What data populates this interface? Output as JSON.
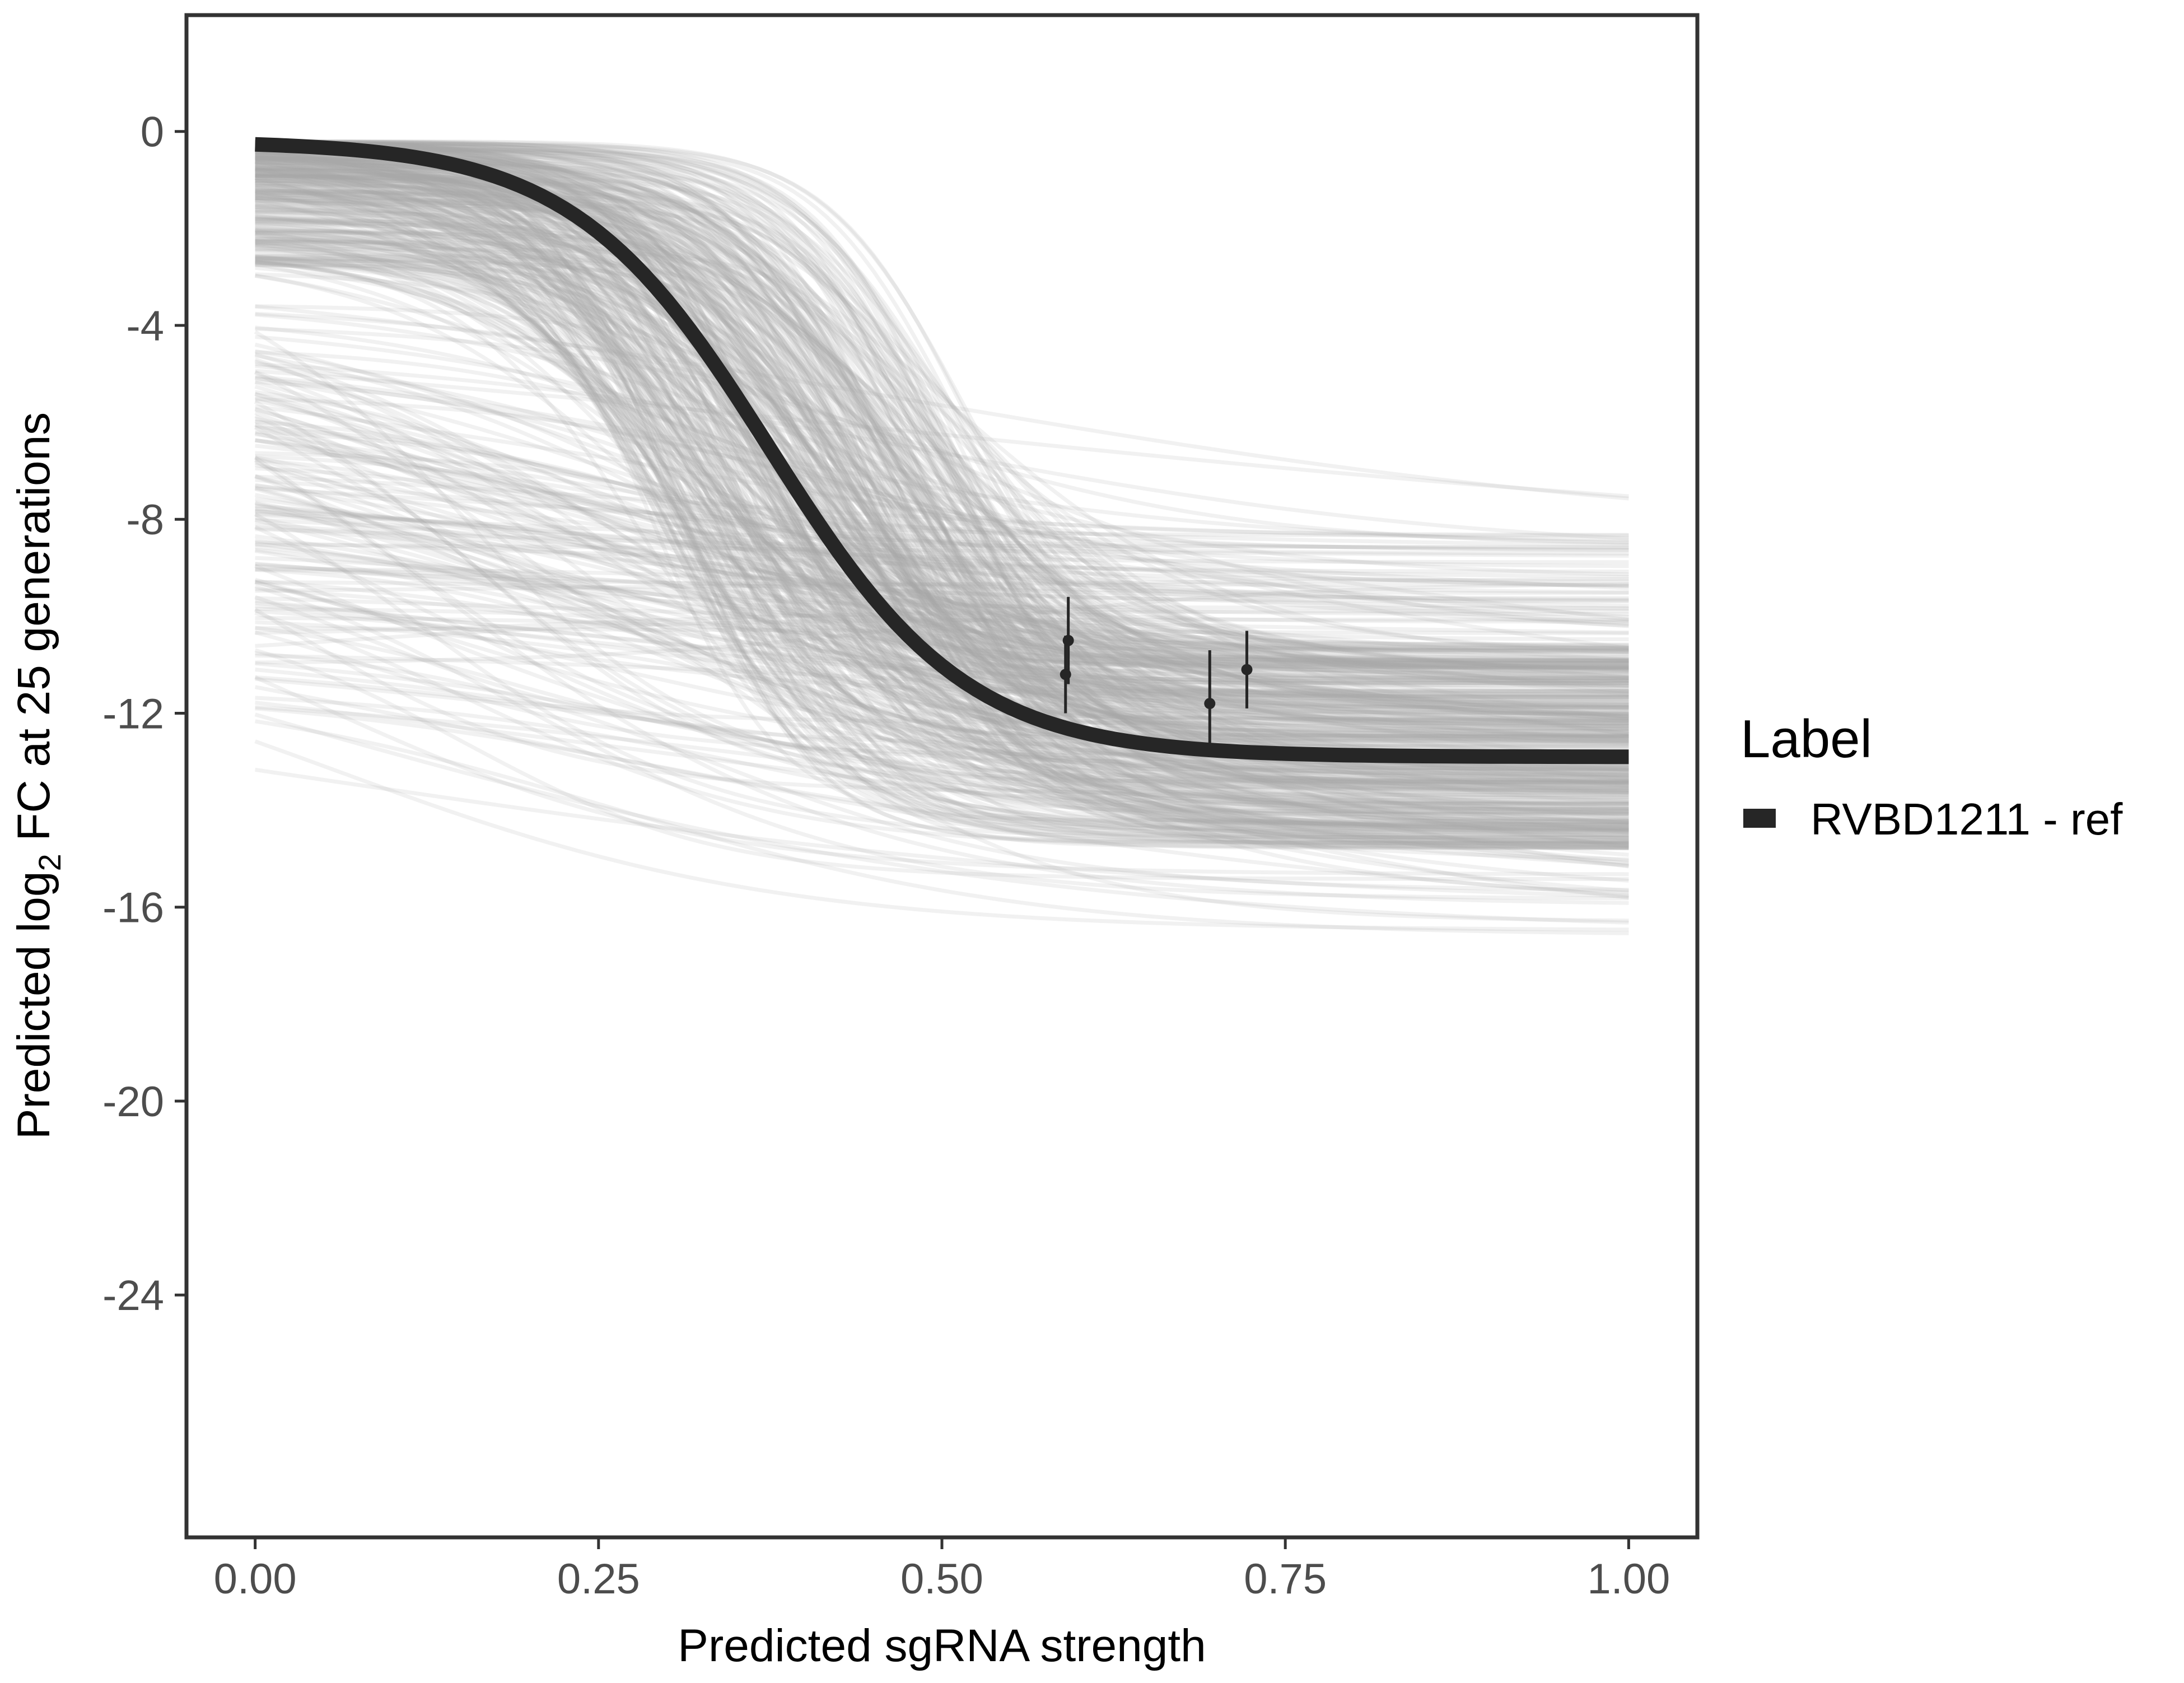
{
  "chart_data": {
    "type": "line",
    "title": "",
    "xlabel": "Predicted sgRNA strength",
    "ylabel": {
      "prefix": "Predicted  log",
      "subscript": "2",
      "suffix": " FC at 25 generations"
    },
    "xlim": [
      -0.05,
      1.05
    ],
    "ylim": [
      -29,
      2.4
    ],
    "x_ticks": [
      0.0,
      0.25,
      0.5,
      0.75,
      1.0
    ],
    "x_tick_labels": [
      "0.00",
      "0.25",
      "0.50",
      "0.75",
      "1.00"
    ],
    "y_ticks": [
      0,
      -4,
      -8,
      -12,
      -16,
      -20,
      -24
    ],
    "y_tick_labels": [
      "0",
      "-4",
      "-8",
      "-12",
      "-16",
      "-20",
      "-24"
    ],
    "grid": false,
    "legend": {
      "title": "Label",
      "position": "right",
      "entries": [
        {
          "label": "RVBD1211 - ref",
          "color": "#262626"
        }
      ]
    },
    "reference_curve": {
      "name": "RVBD1211 - ref",
      "color": "#262626",
      "model": "logistic",
      "upper": -0.2,
      "lower": -12.9,
      "midpoint": 0.375,
      "slope": 14
    },
    "posterior_draws": {
      "count": 500,
      "color": "#aaaaaa",
      "upper_range": [
        -11.6,
        -0.2
      ],
      "lower_range": [
        -16.6,
        -8.2
      ],
      "midpoint_range": [
        0.0,
        0.55
      ],
      "slope_range": [
        2,
        24
      ]
    },
    "observations": [
      {
        "x": 0.59,
        "y": -11.2,
        "ymin": -12.0,
        "ymax": -10.4
      },
      {
        "x": 0.592,
        "y": -10.5,
        "ymin": -11.4,
        "ymax": -9.6
      },
      {
        "x": 0.695,
        "y": -11.8,
        "ymin": -12.9,
        "ymax": -10.7
      },
      {
        "x": 0.722,
        "y": -11.1,
        "ymin": -11.9,
        "ymax": -10.3
      }
    ]
  },
  "colors": {
    "background": "#ffffff",
    "panel_border": "#333333",
    "tick_label": "#4d4d4d",
    "reference": "#262626",
    "draws": "#aaaaaa",
    "points": "#262626"
  }
}
